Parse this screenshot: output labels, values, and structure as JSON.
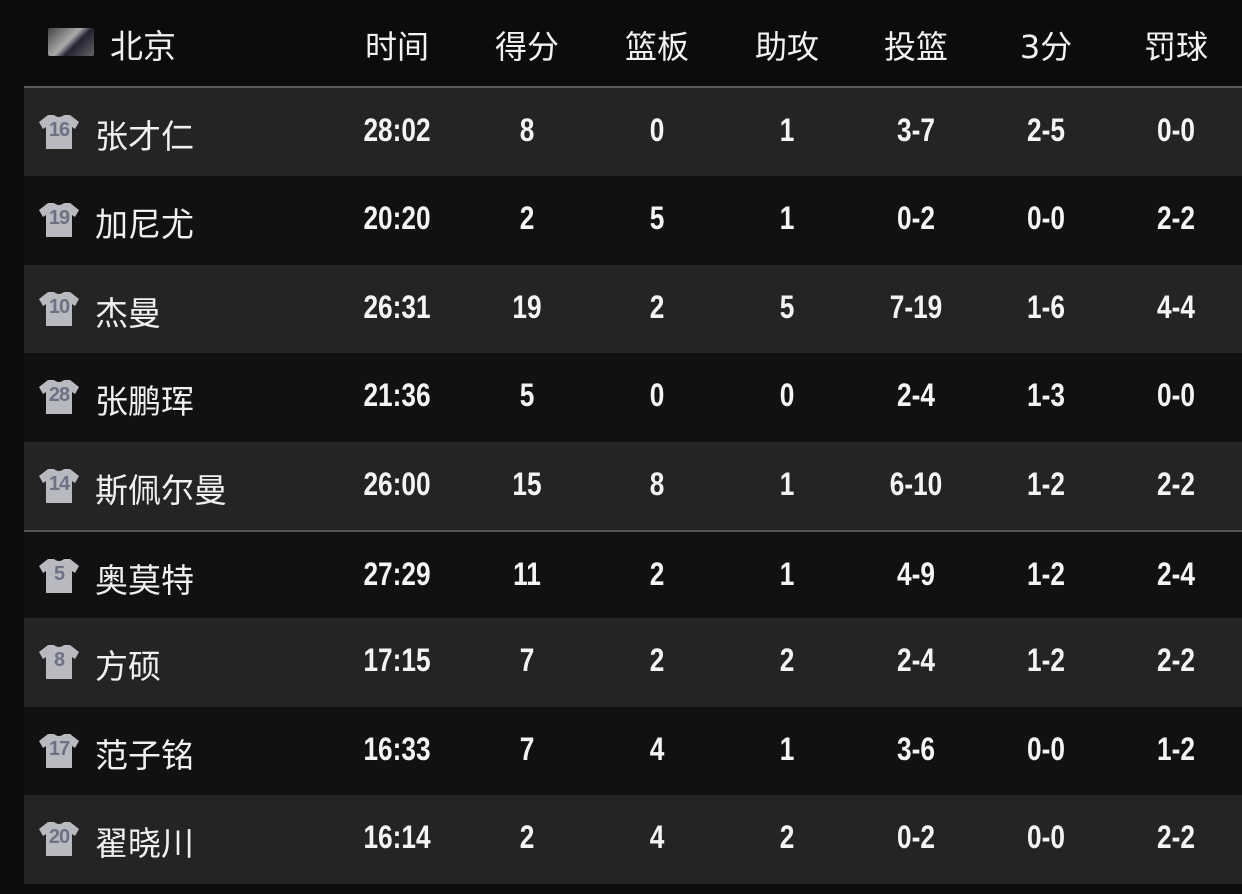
{
  "team": {
    "name": "北京",
    "logo": "team-logo"
  },
  "columns": [
    "时间",
    "得分",
    "篮板",
    "助攻",
    "投篮",
    "3分",
    "罚球"
  ],
  "players": [
    {
      "number": "16",
      "name": "张才仁",
      "stats": [
        "28:02",
        "8",
        "0",
        "1",
        "3-7",
        "2-5",
        "0-0"
      ]
    },
    {
      "number": "19",
      "name": "加尼尤",
      "stats": [
        "20:20",
        "2",
        "5",
        "1",
        "0-2",
        "0-0",
        "2-2"
      ]
    },
    {
      "number": "10",
      "name": "杰曼",
      "stats": [
        "26:31",
        "19",
        "2",
        "5",
        "7-19",
        "1-6",
        "4-4"
      ]
    },
    {
      "number": "28",
      "name": "张鹏珲",
      "stats": [
        "21:36",
        "5",
        "0",
        "0",
        "2-4",
        "1-3",
        "0-0"
      ]
    },
    {
      "number": "14",
      "name": "斯佩尔曼",
      "stats": [
        "26:00",
        "15",
        "8",
        "1",
        "6-10",
        "1-2",
        "2-2"
      ]
    },
    {
      "number": "5",
      "name": "奥莫特",
      "stats": [
        "27:29",
        "11",
        "2",
        "1",
        "4-9",
        "1-2",
        "2-4"
      ]
    },
    {
      "number": "8",
      "name": "方硕",
      "stats": [
        "17:15",
        "7",
        "2",
        "2",
        "2-4",
        "1-2",
        "2-2"
      ]
    },
    {
      "number": "17",
      "name": "范子铭",
      "stats": [
        "16:33",
        "7",
        "4",
        "1",
        "3-6",
        "0-0",
        "1-2"
      ]
    },
    {
      "number": "20",
      "name": "翟晓川",
      "stats": [
        "16:14",
        "2",
        "4",
        "2",
        "0-2",
        "0-0",
        "2-2"
      ]
    }
  ]
}
